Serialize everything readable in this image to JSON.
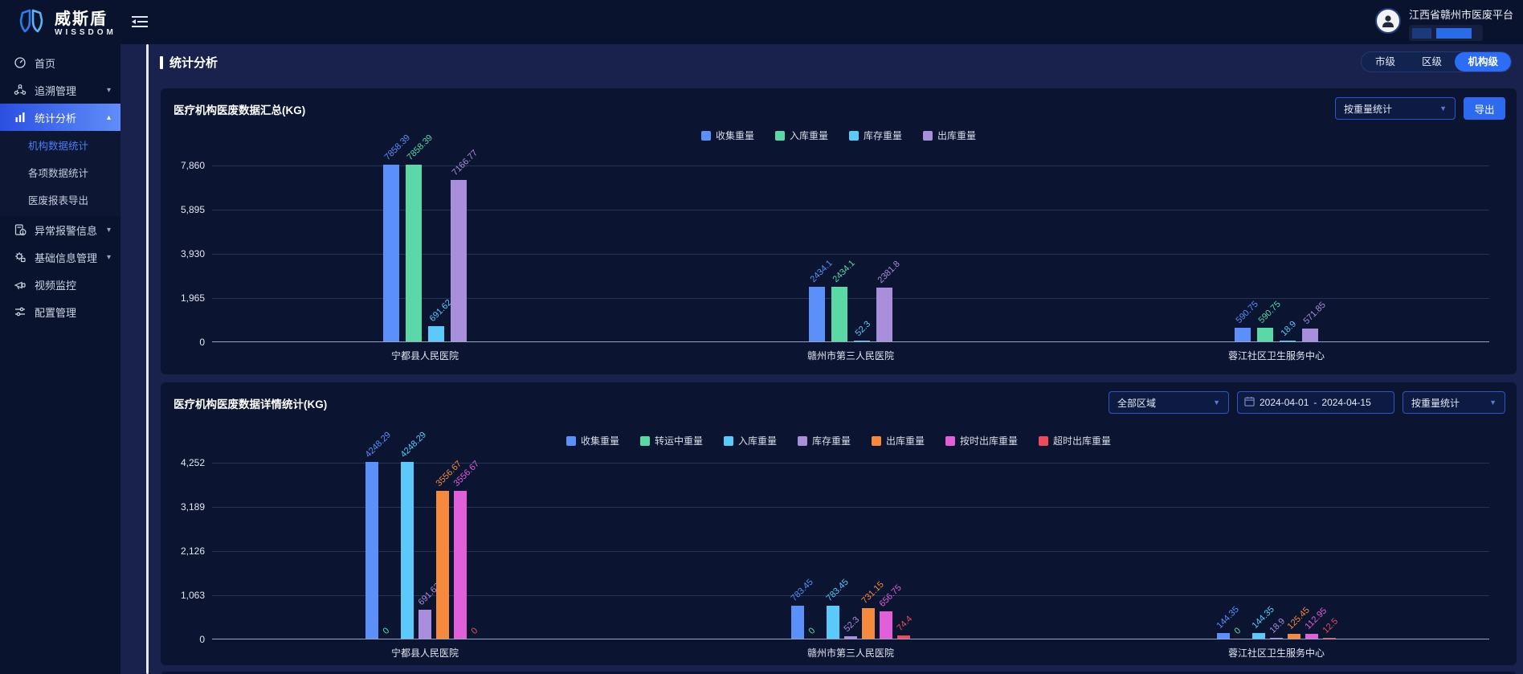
{
  "brand": {
    "name_cn": "威斯盾",
    "name_en": "WISSDOM"
  },
  "header": {
    "platform_name": "江西省赣州市医废平台"
  },
  "sidebar": {
    "items": [
      {
        "id": "home",
        "label": "首页",
        "icon": "dashboard-icon"
      },
      {
        "id": "trace",
        "label": "追溯管理",
        "icon": "trace-icon",
        "expandable": true
      },
      {
        "id": "stats",
        "label": "统计分析",
        "icon": "stats-icon",
        "expandable": true,
        "active": true,
        "expanded": true,
        "children": [
          {
            "id": "org-data-stats",
            "label": "机构数据统计",
            "active": true
          },
          {
            "id": "item-data-stats",
            "label": "各项数据统计"
          },
          {
            "id": "report-export",
            "label": "医废报表导出"
          }
        ]
      },
      {
        "id": "alarm",
        "label": "异常报警信息",
        "icon": "alarm-icon",
        "expandable": true
      },
      {
        "id": "baseinfo",
        "label": "基础信息管理",
        "icon": "baseinfo-icon",
        "expandable": true
      },
      {
        "id": "video",
        "label": "视频监控",
        "icon": "video-icon"
      },
      {
        "id": "config",
        "label": "配置管理",
        "icon": "config-icon"
      }
    ]
  },
  "page": {
    "title": "统计分析",
    "tabs": [
      {
        "id": "city",
        "label": "市级"
      },
      {
        "id": "district",
        "label": "区级"
      },
      {
        "id": "org",
        "label": "机构级",
        "active": true
      }
    ]
  },
  "panel1": {
    "title": "医疗机构医废数据汇总(KG)",
    "weight_select": "按重量统计",
    "export_label": "导出",
    "chart_data": {
      "type": "bar",
      "categories": [
        "宁都县人民医院",
        "赣州市第三人民医院",
        "蓉江社区卫生服务中心"
      ],
      "series": [
        {
          "name": "收集重量",
          "color": "#5B8FF9",
          "values": [
            7858.39,
            2434.1,
            590.75
          ]
        },
        {
          "name": "入库重量",
          "color": "#5AD8A6",
          "values": [
            7858.39,
            2434.1,
            590.75
          ]
        },
        {
          "name": "库存重量",
          "color": "#5BC9FA",
          "values": [
            691.62,
            52.3,
            18.9
          ]
        },
        {
          "name": "出库重量",
          "color": "#A98FDB",
          "values": [
            7166.77,
            2381.8,
            571.85
          ]
        }
      ],
      "yticks": [
        0,
        1965,
        3930,
        5895,
        7860
      ],
      "ymax": 7860,
      "ylabel": "",
      "xlabel": "",
      "legend_position": "top",
      "grid": true
    }
  },
  "panel2": {
    "title": "医疗机构医废数据详情统计(KG)",
    "region_select": "全部区域",
    "date_start": "2024-04-01",
    "date_sep": "-",
    "date_end": "2024-04-15",
    "weight_select": "按重量统计",
    "chart_data": {
      "type": "bar",
      "categories": [
        "宁都县人民医院",
        "赣州市第三人民医院",
        "蓉江社区卫生服务中心"
      ],
      "series": [
        {
          "name": "收集重量",
          "color": "#5B8FF9",
          "values": [
            4248.29,
            783.45,
            144.35
          ]
        },
        {
          "name": "转运中重量",
          "color": "#5AD8A6",
          "values": [
            0,
            0,
            0
          ]
        },
        {
          "name": "入库重量",
          "color": "#5BC9FA",
          "values": [
            4248.29,
            783.45,
            144.35
          ]
        },
        {
          "name": "库存重量",
          "color": "#A98FDB",
          "values": [
            691.62,
            52.3,
            18.9
          ]
        },
        {
          "name": "出库重量",
          "color": "#F5893D",
          "values": [
            3556.67,
            731.15,
            125.45
          ]
        },
        {
          "name": "按时出库重量",
          "color": "#E15FD8",
          "values": [
            3556.67,
            656.75,
            112.95
          ]
        },
        {
          "name": "超时出库重量",
          "color": "#EA4C5C",
          "values": [
            0,
            74.4,
            12.5
          ]
        }
      ],
      "yticks": [
        0,
        1063,
        2126,
        3189,
        4252
      ],
      "ymax": 4252,
      "ylabel": "",
      "xlabel": "",
      "legend_position": "top",
      "grid": true
    }
  }
}
